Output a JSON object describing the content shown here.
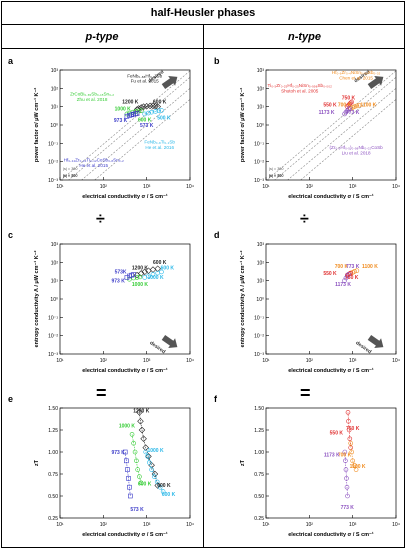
{
  "title": "half-Heusler phases",
  "columns": {
    "left": "p-type",
    "right": "n-type"
  },
  "operators": {
    "divide": "÷",
    "equals": "="
  },
  "colors": {
    "blue": "#3b3bc8",
    "green": "#33cc33",
    "cyan": "#27b7e8",
    "black": "#222222",
    "orange": "#f08a1c",
    "red": "#e03030",
    "purple": "#8a4fbf",
    "violet": "#6a36b8",
    "gridline": "#888888"
  },
  "chart_data": [
    {
      "panel": "a",
      "type": "scatter",
      "xlabel": "electrical conductivity σ / S cm⁻¹",
      "ylabel": "power factor σ/ μW cm⁻¹ K⁻²",
      "xscale": "log",
      "yscale": "log",
      "xlim": [
        10,
        10000
      ],
      "ylim": [
        0.001,
        1000
      ],
      "xticks": [
        "10¹",
        "10²",
        "10³",
        "10⁴"
      ],
      "yticks": [
        "10⁻³",
        "10⁻²",
        "10⁻¹",
        "10⁰",
        "10¹",
        "10²",
        "10³"
      ],
      "isolines": [
        {
          "label": "|s| = 300",
          "k": 9e-06
        },
        {
          "label": "|s| = 200",
          "k": 4e-06
        },
        {
          "label": "|s| = 100",
          "k": 1e-06
        },
        {
          "label": "|s| = 50",
          "k": 2.5e-07
        }
      ],
      "desired_label": "desired",
      "desired_direction": "up-right",
      "annotations": [
        {
          "text": "FeNb₀.₈₈Hf₀.₁₂Sb",
          "color": "black",
          "at": [
            900,
            400
          ]
        },
        {
          "text": "Fu et al. 2015",
          "color": "black",
          "at": [
            900,
            210
          ]
        },
        {
          "text": "ZrCoBi₀.₆₅Sb₀.₁₅Sn₀.₂",
          "color": "green",
          "at": [
            55,
            40
          ]
        },
        {
          "text": "Zhu et al. 2018",
          "color": "green",
          "at": [
            55,
            20
          ]
        },
        {
          "text": "FeNb₀.₈Ti₀.₂Sb",
          "color": "cyan",
          "at": [
            2000,
            0.1
          ]
        },
        {
          "text": "He et al. 2016",
          "color": "cyan",
          "at": [
            2000,
            0.05
          ]
        },
        {
          "text": "Hf₀.₄₄Zr₀.₄₄Ti₀.₁₂CoSb₀.₈Sn₀.₂",
          "color": "blue",
          "at": [
            60,
            0.01
          ]
        },
        {
          "text": "He et al. 2015",
          "color": "blue",
          "at": [
            60,
            0.005
          ]
        }
      ],
      "temp_labels": [
        {
          "text": "1200 K",
          "color": "black",
          "at": [
            420,
            15
          ]
        },
        {
          "text": "600 K",
          "color": "black",
          "at": [
            2000,
            15
          ]
        },
        {
          "text": "1000 K",
          "color": "green",
          "at": [
            280,
            6
          ]
        },
        {
          "text": "600 K",
          "color": "green",
          "at": [
            900,
            1.6
          ]
        },
        {
          "text": "500 K",
          "color": "cyan",
          "at": [
            2500,
            2.0
          ]
        },
        {
          "text": "973 K",
          "color": "blue",
          "at": [
            250,
            1.5
          ]
        },
        {
          "text": "573 K",
          "color": "blue",
          "at": [
            1000,
            0.8
          ]
        }
      ],
      "series": [
        {
          "name": "FeNb₀.₈₈Hf₀.₁₂Sb",
          "color": "black",
          "x": [
            600,
            650,
            750,
            850,
            1000,
            1200,
            1400,
            1600,
            1800
          ],
          "y": [
            7,
            8,
            9,
            10,
            10.5,
            11,
            11,
            10.5,
            10
          ]
        },
        {
          "name": "ZrCoBi₀.₆₅Sb₀.₁₅Sn₀.₂",
          "color": "green",
          "x": [
            350,
            400,
            480,
            560,
            650,
            750
          ],
          "y": [
            4,
            4.5,
            5,
            5.5,
            5.8,
            6
          ]
        },
        {
          "name": "FeNb₀.₈Ti₀.₂Sb",
          "color": "cyan",
          "x": [
            900,
            1100,
            1300,
            1600,
            1900,
            2200
          ],
          "y": [
            4,
            4.5,
            5,
            5.5,
            6,
            6.2
          ]
        },
        {
          "name": "Hf₀.₄₄Zr₀.₄₄Ti₀.₁₂CoSb₀.₈Sn₀.₂",
          "color": "blue",
          "x": [
            350,
            400,
            450,
            500,
            550,
            600
          ],
          "y": [
            3,
            3.3,
            3.6,
            3.9,
            4.1,
            4.2
          ]
        }
      ]
    },
    {
      "panel": "b",
      "type": "scatter",
      "xlabel": "electrical conductivity σ / S cm⁻¹",
      "ylabel": "power factor σ/ μW cm⁻¹ K⁻²",
      "xscale": "log",
      "yscale": "log",
      "xlim": [
        10,
        10000
      ],
      "ylim": [
        0.001,
        1000
      ],
      "xticks": [
        "10¹",
        "10²",
        "10³",
        "10⁴"
      ],
      "yticks": [
        "10⁻³",
        "10⁻²",
        "10⁻¹",
        "10⁰",
        "10¹",
        "10²",
        "10³"
      ],
      "isolines": [
        {
          "label": "|s| = 300",
          "k": 9e-06
        },
        {
          "label": "|s| = 200",
          "k": 4e-06
        },
        {
          "label": "|s| = 100",
          "k": 1e-06
        },
        {
          "label": "|s| = 50",
          "k": 2.5e-07
        }
      ],
      "desired_label": "desired",
      "desired_direction": "up-right",
      "annotations": [
        {
          "text": "Hf₀.₆Zr₀.₄NiSn₀.₉₈Sb₀.₀₂",
          "color": "orange",
          "at": [
            1200,
            600
          ]
        },
        {
          "text": "Chen et al. 2015",
          "color": "orange",
          "at": [
            1200,
            300
          ]
        },
        {
          "text": "Ti₀.₅Zr₀.₂₅Hf₀.₂₅NiSn₀.₉₉₈Sb₀.₀₀₂",
          "color": "red",
          "at": [
            60,
            120
          ]
        },
        {
          "text": "Shutoh et al. 2005",
          "color": "red",
          "at": [
            60,
            60
          ]
        },
        {
          "text": "(Zr₀.₅Hf₀.₅)₀.₉₈Nb₀.₀₂CoSb",
          "color": "purple",
          "at": [
            1200,
            0.05
          ]
        },
        {
          "text": "Liu et al. 2018",
          "color": "purple",
          "at": [
            1200,
            0.025
          ]
        }
      ],
      "temp_labels": [
        {
          "text": "750 K",
          "color": "red",
          "at": [
            800,
            25
          ]
        },
        {
          "text": "550 K",
          "color": "red",
          "at": [
            300,
            10
          ]
        },
        {
          "text": "700 K",
          "color": "orange",
          "at": [
            650,
            10
          ]
        },
        {
          "text": "1100 K",
          "color": "orange",
          "at": [
            2300,
            10
          ]
        },
        {
          "text": "1173 K",
          "color": "purple",
          "at": [
            250,
            4
          ]
        },
        {
          "text": "773 K",
          "color": "purple",
          "at": [
            1000,
            4
          ]
        }
      ],
      "series": [
        {
          "name": "Hf₀.₆Zr₀.₄NiSn₀.₉₈Sb₀.₀₂",
          "color": "orange",
          "x": [
            900,
            1000,
            1100,
            1250,
            1400
          ],
          "y": [
            8,
            9,
            10,
            11,
            12
          ]
        },
        {
          "name": "Ti₀.₅Zr₀.₂₅Hf₀.₂₅NiSn₀.₉₉₈Sb₀.₀₀₂",
          "color": "red",
          "x": [
            750,
            800,
            850,
            900,
            950
          ],
          "y": [
            10,
            12,
            14,
            16,
            18
          ]
        },
        {
          "name": "(Zr₀.₅Hf₀.₅)₀.₉₈Nb₀.₀₂CoSb",
          "color": "purple",
          "x": [
            650,
            700,
            750,
            800,
            850
          ],
          "y": [
            4,
            5,
            6,
            7,
            8
          ]
        }
      ]
    },
    {
      "panel": "c",
      "type": "scatter",
      "xlabel": "electrical conductivity σ / S cm⁻¹",
      "ylabel": "entropy conductivity Λ / μW cm⁻¹ K⁻²",
      "xscale": "log",
      "yscale": "log",
      "xlim": [
        10,
        10000
      ],
      "ylim": [
        0.001,
        1000
      ],
      "xticks": [
        "10¹",
        "10²",
        "10³",
        "10⁴"
      ],
      "yticks": [
        "10⁻³",
        "10⁻²",
        "10⁻¹",
        "10⁰",
        "10¹",
        "10²",
        "10³"
      ],
      "desired_label": "desired",
      "desired_direction": "down-right",
      "temp_labels": [
        {
          "text": "600 K",
          "color": "black",
          "at": [
            2000,
            80
          ]
        },
        {
          "text": "600 K",
          "color": "cyan",
          "at": [
            3000,
            40
          ]
        },
        {
          "text": "1200 K",
          "color": "black",
          "at": [
            700,
            40
          ]
        },
        {
          "text": "573K",
          "color": "blue",
          "at": [
            250,
            25
          ]
        },
        {
          "text": "1000 K",
          "color": "cyan",
          "at": [
            1600,
            12
          ]
        },
        {
          "text": "973 K",
          "color": "blue",
          "at": [
            220,
            8
          ]
        },
        {
          "text": "1000 K",
          "color": "green",
          "at": [
            700,
            5
          ]
        }
      ],
      "series": [
        {
          "name": "black",
          "color": "black",
          "x": [
            600,
            750,
            900,
            1100,
            1400,
            1800
          ],
          "y": [
            20,
            25,
            30,
            35,
            40,
            45
          ]
        },
        {
          "name": "cyan",
          "color": "cyan",
          "x": [
            900,
            1100,
            1400,
            1800,
            2200
          ],
          "y": [
            15,
            18,
            22,
            26,
            30
          ]
        },
        {
          "name": "green",
          "color": "green",
          "x": [
            400,
            500,
            600,
            700
          ],
          "y": [
            12,
            14,
            15,
            16
          ]
        },
        {
          "name": "blue",
          "color": "blue",
          "x": [
            350,
            400,
            450,
            500
          ],
          "y": [
            15,
            18,
            20,
            22
          ]
        }
      ]
    },
    {
      "panel": "d",
      "type": "scatter",
      "xlabel": "electrical conductivity σ / S cm⁻¹",
      "ylabel": "entropy conductivity Λ / μW cm⁻¹ K⁻²",
      "xscale": "log",
      "yscale": "log",
      "xlim": [
        10,
        10000
      ],
      "ylim": [
        0.001,
        1000
      ],
      "xticks": [
        "10¹",
        "10²",
        "10³",
        "10⁴"
      ],
      "yticks": [
        "10⁻³",
        "10⁻²",
        "10⁻¹",
        "10⁰",
        "10¹",
        "10²",
        "10³"
      ],
      "desired_label": "desired",
      "desired_direction": "down-right",
      "temp_labels": [
        {
          "text": "700 K",
          "color": "orange",
          "at": [
            550,
            50
          ]
        },
        {
          "text": "773 K",
          "color": "purple",
          "at": [
            1000,
            50
          ]
        },
        {
          "text": "1100 K",
          "color": "orange",
          "at": [
            2500,
            50
          ]
        },
        {
          "text": "550 K",
          "color": "red",
          "at": [
            300,
            20
          ]
        },
        {
          "text": "750 K",
          "color": "red",
          "at": [
            950,
            12
          ]
        },
        {
          "text": "1173 K",
          "color": "purple",
          "at": [
            600,
            5
          ]
        }
      ],
      "series": [
        {
          "name": "orange",
          "color": "orange",
          "x": [
            900,
            1000,
            1100,
            1250
          ],
          "y": [
            25,
            28,
            32,
            35
          ]
        },
        {
          "name": "red",
          "color": "red",
          "x": [
            750,
            800,
            850,
            900
          ],
          "y": [
            20,
            22,
            24,
            26
          ]
        },
        {
          "name": "purple",
          "color": "purple",
          "x": [
            650,
            700,
            750,
            800
          ],
          "y": [
            10,
            14,
            18,
            22
          ]
        }
      ]
    },
    {
      "panel": "e",
      "type": "line",
      "xlabel": "electrical conductivity σ / S cm⁻¹",
      "ylabel": "zT",
      "xscale": "log",
      "xlim": [
        10,
        10000
      ],
      "ylim": [
        0.25,
        1.5
      ],
      "xticks": [
        "10¹",
        "10²",
        "10³",
        "10⁴"
      ],
      "yticks": [
        "0.25",
        "0.50",
        "0.75",
        "1.00",
        "1.25",
        "1.50"
      ],
      "temp_labels": [
        {
          "text": "1200 K",
          "color": "black",
          "at": [
            750,
            1.45
          ]
        },
        {
          "text": "1000 K",
          "color": "green",
          "at": [
            350,
            1.28
          ]
        },
        {
          "text": "1000 K",
          "color": "cyan",
          "at": [
            1600,
            1.0
          ]
        },
        {
          "text": "973 K",
          "color": "blue",
          "at": [
            220,
            0.98
          ]
        },
        {
          "text": "600 K",
          "color": "green",
          "at": [
            900,
            0.62
          ]
        },
        {
          "text": "600 K",
          "color": "black",
          "at": [
            2500,
            0.6
          ]
        },
        {
          "text": "600 K",
          "color": "cyan",
          "at": [
            3200,
            0.5
          ]
        },
        {
          "text": "573 K",
          "color": "blue",
          "at": [
            600,
            0.33
          ]
        }
      ],
      "series": [
        {
          "name": "black",
          "color": "black",
          "x": [
            680,
            720,
            780,
            850,
            950,
            1100,
            1300,
            1550,
            1800
          ],
          "y": [
            1.45,
            1.35,
            1.25,
            1.15,
            1.05,
            0.95,
            0.85,
            0.75,
            0.62
          ]
        },
        {
          "name": "green",
          "color": "green",
          "x": [
            460,
            500,
            540,
            580,
            620,
            680,
            740
          ],
          "y": [
            1.2,
            1.1,
            1.0,
            0.9,
            0.8,
            0.72,
            0.65
          ]
        },
        {
          "name": "cyan",
          "color": "cyan",
          "x": [
            950,
            1050,
            1150,
            1300,
            1500,
            1750,
            2050,
            2400
          ],
          "y": [
            1.0,
            0.95,
            0.88,
            0.8,
            0.72,
            0.66,
            0.6,
            0.55
          ]
        },
        {
          "name": "blue",
          "color": "blue",
          "x": [
            320,
            340,
            360,
            380,
            400,
            420
          ],
          "y": [
            1.0,
            0.9,
            0.8,
            0.7,
            0.6,
            0.5
          ]
        }
      ]
    },
    {
      "panel": "f",
      "type": "line",
      "xlabel": "electrical conductivity σ / S cm⁻¹",
      "ylabel": "zT",
      "xscale": "log",
      "xlim": [
        10,
        10000
      ],
      "ylim": [
        0.25,
        1.5
      ],
      "xticks": [
        "10¹",
        "10²",
        "10³",
        "10⁴"
      ],
      "yticks": [
        "0.25",
        "0.50",
        "0.75",
        "1.00",
        "1.25",
        "1.50"
      ],
      "temp_labels": [
        {
          "text": "750 K",
          "color": "red",
          "at": [
            1000,
            1.25
          ]
        },
        {
          "text": "550 K",
          "color": "red",
          "at": [
            420,
            1.2
          ]
        },
        {
          "text": "700 K",
          "color": "orange",
          "at": [
            650,
            0.95
          ]
        },
        {
          "text": "1173 K",
          "color": "purple",
          "at": [
            330,
            0.95
          ]
        },
        {
          "text": "1100 K",
          "color": "orange",
          "at": [
            1300,
            0.82
          ]
        },
        {
          "text": "773 K",
          "color": "purple",
          "at": [
            750,
            0.35
          ]
        }
      ],
      "series": [
        {
          "name": "red",
          "color": "red",
          "x": [
            780,
            800,
            830,
            860,
            900
          ],
          "y": [
            1.45,
            1.35,
            1.25,
            1.15,
            1.05
          ]
        },
        {
          "name": "orange",
          "color": "orange",
          "x": [
            900,
            950,
            1000,
            1100,
            1200
          ],
          "y": [
            1.1,
            1.0,
            0.9,
            0.85,
            0.8
          ]
        },
        {
          "name": "purple",
          "color": "purple",
          "x": [
            660,
            680,
            700,
            720,
            740,
            760
          ],
          "y": [
            1.0,
            0.9,
            0.8,
            0.7,
            0.6,
            0.5
          ]
        }
      ]
    }
  ]
}
